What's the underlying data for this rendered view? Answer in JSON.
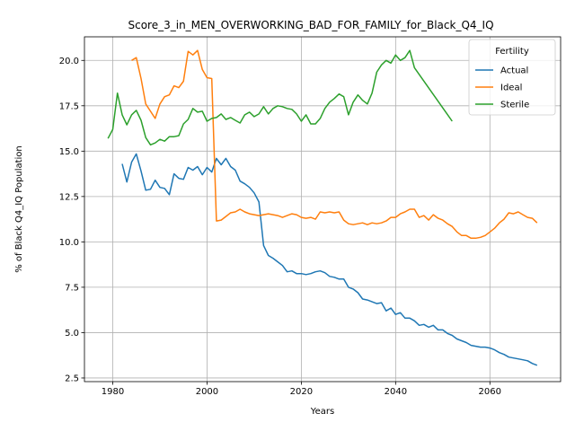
{
  "chart_data": {
    "type": "line",
    "title": "Score_3_in_MEN_OVERWORKING_BAD_FOR_FAMILY_for_Black_Q4_IQ",
    "xlabel": "Years",
    "ylabel": "% of Black Q4_IQ Population",
    "xlim": [
      1974,
      2075
    ],
    "ylim": [
      2.3,
      21.3
    ],
    "xticks": [
      1980,
      2000,
      2020,
      2040,
      2060
    ],
    "xtick_labels": [
      "1980",
      "2000",
      "2020",
      "2040",
      "2060"
    ],
    "yticks": [
      2.5,
      5.0,
      7.5,
      10.0,
      12.5,
      15.0,
      17.5,
      20.0
    ],
    "ytick_labels": [
      "2.5",
      "5.0",
      "7.5",
      "10.0",
      "12.5",
      "15.0",
      "17.5",
      "20.0"
    ],
    "grid": true,
    "legend": {
      "title": "Fertility",
      "placement": "top-right"
    },
    "series": [
      {
        "name": "Actual",
        "color": "#1f77b4",
        "x": [
          1982,
          1983,
          1984,
          1985,
          1986,
          1987,
          1988,
          1989,
          1990,
          1991,
          1992,
          1993,
          1994,
          1995,
          1996,
          1997,
          1998,
          1999,
          2000,
          2001,
          2002,
          2003,
          2004,
          2005,
          2006,
          2007,
          2008,
          2009,
          2010,
          2011,
          2012,
          2013,
          2014,
          2015,
          2016,
          2017,
          2018,
          2019,
          2020,
          2021,
          2022,
          2023,
          2024,
          2025,
          2026,
          2027,
          2028,
          2029,
          2030,
          2031,
          2032,
          2033,
          2034,
          2035,
          2036,
          2037,
          2038,
          2039,
          2040,
          2041,
          2042,
          2043,
          2044,
          2045,
          2046,
          2047,
          2048,
          2049,
          2050,
          2051,
          2052,
          2053,
          2054,
          2055,
          2056,
          2057,
          2058,
          2059,
          2060,
          2061,
          2062,
          2063,
          2064,
          2065,
          2066,
          2067,
          2068,
          2069,
          2070
        ],
        "values": [
          14.3,
          13.3,
          14.4,
          14.85,
          13.9,
          12.85,
          12.9,
          13.4,
          13.0,
          12.95,
          12.6,
          13.75,
          13.5,
          13.45,
          14.1,
          13.95,
          14.15,
          13.7,
          14.1,
          13.85,
          14.6,
          14.25,
          14.6,
          14.15,
          13.95,
          13.35,
          13.2,
          13.0,
          12.7,
          12.2,
          9.8,
          9.25,
          9.1,
          8.9,
          8.7,
          8.35,
          8.4,
          8.25,
          8.25,
          8.2,
          8.25,
          8.35,
          8.4,
          8.3,
          8.1,
          8.05,
          7.95,
          7.95,
          7.5,
          7.4,
          7.2,
          6.85,
          6.8,
          6.7,
          6.6,
          6.65,
          6.2,
          6.35,
          6.0,
          6.1,
          5.8,
          5.8,
          5.65,
          5.4,
          5.45,
          5.3,
          5.4,
          5.15,
          5.15,
          4.95,
          4.85,
          4.65,
          4.55,
          4.45,
          4.3,
          4.25,
          4.2,
          4.2,
          4.15,
          4.05,
          3.9,
          3.8,
          3.65,
          3.6,
          3.55,
          3.5,
          3.45,
          3.3,
          3.2
        ]
      },
      {
        "name": "Ideal",
        "color": "#ff7f0e",
        "x": [
          1984,
          1985,
          1986,
          1987,
          1988,
          1989,
          1990,
          1991,
          1992,
          1993,
          1994,
          1995,
          1996,
          1997,
          1998,
          1999,
          2000,
          2001,
          2002,
          2003,
          2004,
          2005,
          2006,
          2007,
          2008,
          2009,
          2010,
          2011,
          2012,
          2013,
          2014,
          2015,
          2016,
          2017,
          2018,
          2019,
          2020,
          2021,
          2022,
          2023,
          2024,
          2025,
          2026,
          2027,
          2028,
          2029,
          2030,
          2031,
          2032,
          2033,
          2034,
          2035,
          2036,
          2037,
          2038,
          2039,
          2040,
          2041,
          2042,
          2043,
          2044,
          2045,
          2046,
          2047,
          2048,
          2049,
          2050,
          2051,
          2052,
          2053,
          2054,
          2055,
          2056,
          2057,
          2058,
          2059,
          2060,
          2061,
          2062,
          2063,
          2064,
          2065,
          2066,
          2067,
          2068,
          2069,
          2070
        ],
        "values": [
          20.0,
          20.15,
          19.0,
          17.6,
          17.2,
          16.8,
          17.6,
          18.0,
          18.1,
          18.6,
          18.5,
          18.85,
          20.5,
          20.3,
          20.55,
          19.5,
          19.05,
          19.0,
          11.15,
          11.2,
          11.4,
          11.6,
          11.65,
          11.8,
          11.65,
          11.55,
          11.5,
          11.45,
          11.5,
          11.55,
          11.5,
          11.45,
          11.35,
          11.45,
          11.55,
          11.5,
          11.35,
          11.3,
          11.35,
          11.25,
          11.65,
          11.6,
          11.65,
          11.6,
          11.65,
          11.2,
          11.0,
          10.95,
          11.0,
          11.05,
          10.95,
          11.05,
          11.0,
          11.05,
          11.15,
          11.35,
          11.35,
          11.55,
          11.65,
          11.8,
          11.8,
          11.35,
          11.45,
          11.2,
          11.5,
          11.3,
          11.2,
          11.0,
          10.85,
          10.55,
          10.35,
          10.35,
          10.2,
          10.2,
          10.25,
          10.35,
          10.55,
          10.75,
          11.05,
          11.25,
          11.6,
          11.55,
          11.65,
          11.5,
          11.35,
          11.3,
          11.05
        ]
      },
      {
        "name": "Sterile",
        "color": "#2ca02c",
        "x": [
          1979,
          1980,
          1981,
          1982,
          1983,
          1984,
          1985,
          1986,
          1987,
          1988,
          1989,
          1990,
          1991,
          1992,
          1993,
          1994,
          1995,
          1996,
          1997,
          1998,
          1999,
          2000,
          2001,
          2002,
          2003,
          2004,
          2005,
          2006,
          2007,
          2008,
          2009,
          2010,
          2011,
          2012,
          2013,
          2014,
          2015,
          2016,
          2017,
          2018,
          2019,
          2020,
          2021,
          2022,
          2023,
          2024,
          2025,
          2026,
          2027,
          2028,
          2029,
          2030,
          2031,
          2032,
          2033,
          2034,
          2035,
          2036,
          2037,
          2038,
          2039,
          2040,
          2041,
          2042,
          2043,
          2044,
          2052
        ],
        "values": [
          15.7,
          16.2,
          18.2,
          17.0,
          16.45,
          17.0,
          17.25,
          16.7,
          15.75,
          15.35,
          15.45,
          15.65,
          15.55,
          15.8,
          15.8,
          15.85,
          16.5,
          16.75,
          17.35,
          17.15,
          17.2,
          16.65,
          16.8,
          16.85,
          17.05,
          16.75,
          16.85,
          16.7,
          16.55,
          17.0,
          17.15,
          16.9,
          17.05,
          17.45,
          17.05,
          17.35,
          17.5,
          17.45,
          17.35,
          17.3,
          17.05,
          16.65,
          17.0,
          16.5,
          16.5,
          16.8,
          17.35,
          17.7,
          17.9,
          18.15,
          18.0,
          17.0,
          17.7,
          18.1,
          17.8,
          17.6,
          18.2,
          19.35,
          19.75,
          20.0,
          19.85,
          20.3,
          20.0,
          20.15,
          20.55,
          19.6,
          16.65
        ]
      }
    ]
  }
}
